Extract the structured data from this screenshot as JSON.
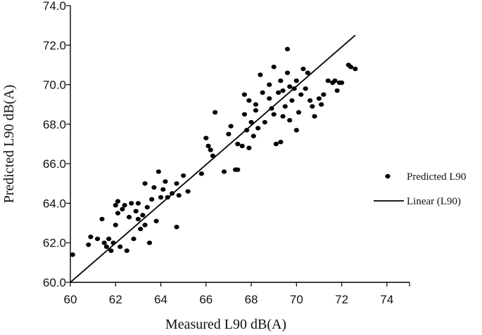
{
  "chart_data": {
    "type": "scatter",
    "title": "",
    "xlabel": "Measured L90 dB(A)",
    "ylabel": "Predicted L90 dB(A)",
    "xlim": [
      60,
      75
    ],
    "ylim": [
      60,
      74
    ],
    "x_ticks": [
      "60",
      "62",
      "64",
      "66",
      "68",
      "70",
      "72",
      "74"
    ],
    "y_ticks": [
      "60.0",
      "62.0",
      "64.0",
      "66.0",
      "68.0",
      "70.0",
      "72.0",
      "74.0"
    ],
    "grid": false,
    "legend_position": "right",
    "series": [
      {
        "name": "Predicted L90",
        "type": "scatter",
        "color": "#000000",
        "points": [
          [
            60.1,
            61.4
          ],
          [
            60.8,
            61.9
          ],
          [
            60.9,
            62.3
          ],
          [
            61.2,
            62.2
          ],
          [
            61.4,
            63.2
          ],
          [
            61.5,
            62.0
          ],
          [
            61.6,
            61.8
          ],
          [
            61.7,
            62.2
          ],
          [
            61.8,
            61.6
          ],
          [
            61.9,
            62.0
          ],
          [
            62.0,
            62.9
          ],
          [
            62.0,
            63.9
          ],
          [
            62.1,
            63.5
          ],
          [
            62.1,
            64.1
          ],
          [
            62.2,
            61.8
          ],
          [
            62.3,
            63.7
          ],
          [
            62.4,
            63.9
          ],
          [
            62.5,
            61.6
          ],
          [
            62.6,
            63.3
          ],
          [
            62.7,
            64.0
          ],
          [
            62.8,
            62.2
          ],
          [
            62.9,
            63.6
          ],
          [
            63.0,
            63.2
          ],
          [
            63.0,
            64.0
          ],
          [
            63.1,
            62.7
          ],
          [
            63.2,
            63.4
          ],
          [
            63.3,
            62.9
          ],
          [
            63.3,
            65.0
          ],
          [
            63.4,
            63.8
          ],
          [
            63.5,
            62.0
          ],
          [
            63.6,
            64.2
          ],
          [
            63.7,
            64.8
          ],
          [
            63.8,
            63.1
          ],
          [
            63.9,
            65.6
          ],
          [
            64.0,
            64.3
          ],
          [
            64.1,
            64.7
          ],
          [
            64.2,
            65.1
          ],
          [
            64.3,
            64.3
          ],
          [
            64.5,
            64.5
          ],
          [
            64.7,
            62.8
          ],
          [
            64.7,
            65.0
          ],
          [
            64.8,
            64.4
          ],
          [
            65.0,
            65.4
          ],
          [
            65.2,
            64.6
          ],
          [
            65.8,
            65.5
          ],
          [
            66.0,
            67.3
          ],
          [
            66.1,
            66.9
          ],
          [
            66.2,
            66.7
          ],
          [
            66.3,
            66.4
          ],
          [
            66.4,
            68.6
          ],
          [
            66.8,
            65.6
          ],
          [
            67.0,
            67.5
          ],
          [
            67.1,
            67.9
          ],
          [
            67.3,
            65.7
          ],
          [
            67.4,
            65.7
          ],
          [
            67.4,
            67.0
          ],
          [
            67.6,
            66.9
          ],
          [
            67.7,
            69.5
          ],
          [
            67.7,
            68.5
          ],
          [
            67.8,
            67.7
          ],
          [
            67.9,
            69.2
          ],
          [
            67.9,
            66.8
          ],
          [
            68.0,
            68.1
          ],
          [
            68.1,
            67.4
          ],
          [
            68.2,
            68.7
          ],
          [
            68.2,
            69.0
          ],
          [
            68.3,
            67.8
          ],
          [
            68.4,
            70.5
          ],
          [
            68.5,
            69.6
          ],
          [
            68.6,
            68.1
          ],
          [
            68.8,
            69.3
          ],
          [
            68.9,
            68.8
          ],
          [
            69.0,
            70.9
          ],
          [
            69.0,
            68.5
          ],
          [
            69.1,
            67.0
          ],
          [
            69.2,
            69.6
          ],
          [
            69.3,
            70.2
          ],
          [
            69.3,
            67.1
          ],
          [
            69.4,
            68.4
          ],
          [
            69.5,
            68.9
          ],
          [
            69.6,
            70.6
          ],
          [
            69.6,
            71.8
          ],
          [
            69.7,
            69.9
          ],
          [
            69.7,
            68.2
          ],
          [
            69.8,
            69.2
          ],
          [
            69.9,
            69.8
          ],
          [
            70.0,
            70.2
          ],
          [
            70.0,
            67.7
          ],
          [
            70.1,
            68.6
          ],
          [
            70.2,
            69.5
          ],
          [
            70.3,
            70.8
          ],
          [
            70.4,
            69.8
          ],
          [
            70.5,
            70.6
          ],
          [
            70.7,
            68.9
          ],
          [
            70.8,
            68.4
          ],
          [
            71.0,
            69.3
          ],
          [
            71.1,
            69.0
          ],
          [
            71.2,
            69.5
          ],
          [
            71.4,
            70.2
          ],
          [
            71.6,
            70.1
          ],
          [
            71.8,
            69.7
          ],
          [
            71.9,
            70.1
          ],
          [
            72.0,
            70.1
          ],
          [
            72.3,
            71.0
          ],
          [
            72.6,
            70.8
          ],
          [
            68.8,
            70.0
          ],
          [
            69.4,
            69.7
          ],
          [
            70.6,
            69.2
          ],
          [
            71.7,
            70.2
          ],
          [
            72.4,
            70.9
          ]
        ]
      },
      {
        "name": "Linear (L90)",
        "type": "line",
        "color": "#000000",
        "x": [
          60.0,
          72.6
        ],
        "y": [
          60.0,
          72.5
        ]
      }
    ]
  }
}
